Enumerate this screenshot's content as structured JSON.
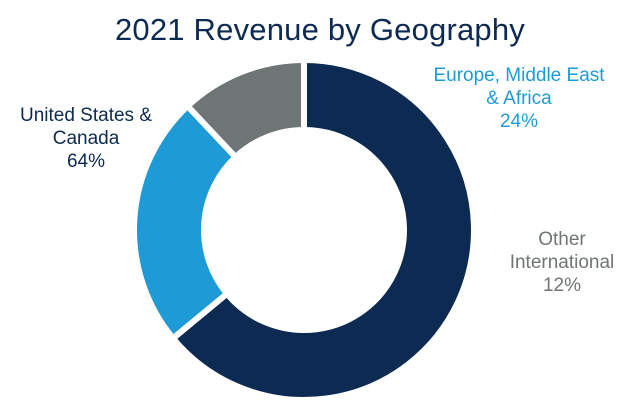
{
  "chart_data": {
    "type": "pie",
    "variant": "donut",
    "title": "2021 Revenue by Geography",
    "slices": [
      {
        "name": "United States & Canada",
        "label_lines": [
          "United States &",
          "Canada"
        ],
        "value": 64,
        "value_label": "64%",
        "color": "#0d2a52"
      },
      {
        "name": "Europe, Middle East & Africa",
        "label_lines": [
          "Europe, Middle East",
          "& Africa"
        ],
        "value": 24,
        "value_label": "24%",
        "color": "#1e9bd7"
      },
      {
        "name": "Other International",
        "label_lines": [
          "Other",
          "International"
        ],
        "value": 12,
        "value_label": "12%",
        "color": "#6f7475"
      }
    ],
    "start": "12 o'clock",
    "direction": "clockwise"
  }
}
